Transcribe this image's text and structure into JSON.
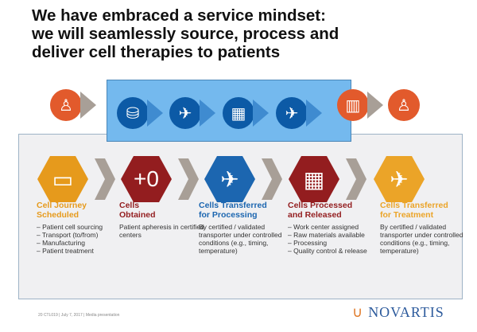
{
  "title": "We have embraced a service mindset:\nwe will seamlessly source, process and\ndeliver cell therapies to patients",
  "flow_icons": [
    "person-icon",
    "iv-bag-icon",
    "airplane-icon",
    "building-icon",
    "airplane-icon",
    "hospital-icon",
    "person-icon"
  ],
  "colors": {
    "orange": "#e25a2c",
    "blue": "#0c5aa6",
    "gold": "#eba428",
    "maroon": "#931d1f",
    "light_blue": "#74b9ee",
    "step_blue": "#1c66b0"
  },
  "steps": [
    {
      "title": "Cell Journey\nScheduled",
      "color": "#e69a1c",
      "icon": "monitor-icon",
      "items": [
        "– Patient cell sourcing",
        "– Transport (to/from)",
        "– Manufacturing",
        "– Patient treatment"
      ]
    },
    {
      "title": "Cells\nObtained",
      "color": "#931d1f",
      "icon": "blood-bag-icon",
      "items": [
        "Patient apheresis in certified centers"
      ]
    },
    {
      "title": "Cells Transferred\nfor Processing",
      "color": "#1c66b0",
      "icon": "airplane-icon",
      "items": [
        "By certified / validated transporter under controlled conditions (e.g., timing, temperature)"
      ]
    },
    {
      "title": "Cells Processed\nand Released",
      "color": "#931d1f",
      "icon": "building-icon",
      "items": [
        "– Work center assigned",
        "– Raw materials available",
        "– Processing",
        "– Quality control & release"
      ]
    },
    {
      "title": "Cells Transferred\nfor Treatment",
      "color": "#eba428",
      "icon": "airplane-icon",
      "items": [
        "By certified / validated transporter under controlled conditions (e.g., timing, temperature)"
      ]
    }
  ],
  "footer": "20   CTL019 | July 7, 2017 | Media presentation",
  "logo": "NOVARTIS"
}
